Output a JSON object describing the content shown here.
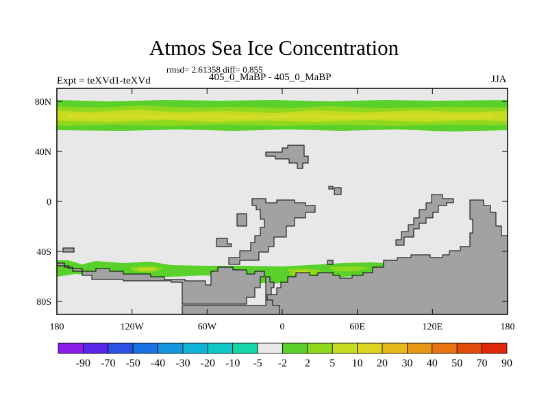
{
  "title": "Atmos Sea Ice Concentration",
  "stats": "rmsd= 2.61358 diff= 0.855",
  "expt_label": "Expt = teXVd1-teXVd",
  "case_label": "405_0_MaBP - 405_0_MaBP",
  "season": "JJA",
  "colors": {
    "land": "#a2a2a2",
    "ocean_zero": "#e8e8e8",
    "ice_low": "#5ad02a",
    "ice_mid": "#8fd81e",
    "ice_high": "#c6dc22",
    "ice_peak": "#d6dc28"
  },
  "map_data": {
    "y_ticks": [
      "80N",
      "40N",
      "0",
      "40S",
      "80S"
    ],
    "x_ticks": [
      "180",
      "120W",
      "60W",
      "0",
      "60E",
      "120E",
      "180"
    ],
    "colorbar": {
      "colors": [
        "#8a1ee8",
        "#5a28e8",
        "#2c52e4",
        "#1a72e2",
        "#1496dc",
        "#10b4d6",
        "#10c8c8",
        "#14d6a8",
        "#e8e8e8",
        "#5ad02a",
        "#8fd81e",
        "#c6dc22",
        "#dcd420",
        "#e6b818",
        "#e69814",
        "#e67410",
        "#e44c0c",
        "#e2280a"
      ],
      "labels": [
        "-90",
        "-70",
        "-50",
        "-40",
        "-30",
        "-20",
        "-10",
        "-5",
        "-2",
        "2",
        "5",
        "10",
        "20",
        "30",
        "40",
        "50",
        "70",
        "90"
      ]
    }
  }
}
